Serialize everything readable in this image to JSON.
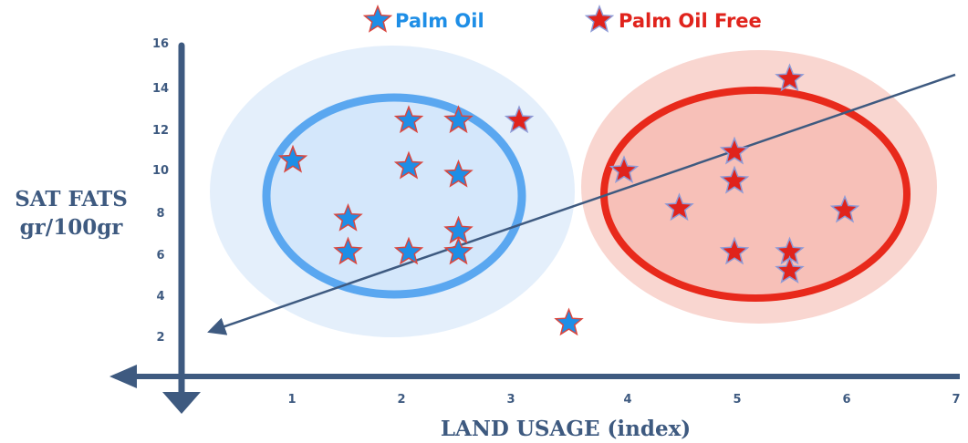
{
  "chart_data": {
    "type": "scatter",
    "xlabel": "LAND USAGE (index)",
    "ylabel": [
      "SAT FATS",
      "gr/100gr"
    ],
    "xlim": [
      0,
      7
    ],
    "ylim": [
      0,
      16
    ],
    "xticks": [
      "1",
      "2",
      "3",
      "4",
      "5",
      "6",
      "7"
    ],
    "yticks": [
      "2",
      "4",
      "6",
      "8",
      "10",
      "12",
      "14",
      "16"
    ],
    "legend_position": "top",
    "series": [
      {
        "name": "Palm Oil",
        "color": "#1e8ee6",
        "points": [
          {
            "x": 1,
            "y": 10.4
          },
          {
            "x": 1.5,
            "y": 7.6
          },
          {
            "x": 1.5,
            "y": 6.0
          },
          {
            "x": 2.05,
            "y": 12.3
          },
          {
            "x": 2.05,
            "y": 10.1
          },
          {
            "x": 2.05,
            "y": 6.0
          },
          {
            "x": 2.5,
            "y": 12.3
          },
          {
            "x": 2.5,
            "y": 9.7
          },
          {
            "x": 2.5,
            "y": 7.0
          },
          {
            "x": 2.5,
            "y": 6.0
          },
          {
            "x": 3.5,
            "y": 2.6
          }
        ]
      },
      {
        "name": "Palm Oil Free",
        "color": "#e0231c",
        "points": [
          {
            "x": 3.05,
            "y": 12.3
          },
          {
            "x": 4,
            "y": 9.9
          },
          {
            "x": 4.5,
            "y": 8.1
          },
          {
            "x": 5,
            "y": 10.8
          },
          {
            "x": 5,
            "y": 9.4
          },
          {
            "x": 5,
            "y": 6.0
          },
          {
            "x": 5.5,
            "y": 14.3
          },
          {
            "x": 5.5,
            "y": 6.0
          },
          {
            "x": 5.5,
            "y": 5.1
          },
          {
            "x": 6,
            "y": 8.0
          }
        ]
      }
    ],
    "trend_line": {
      "x": [
        0.25,
        7
      ],
      "y": [
        2.2,
        14.5
      ]
    },
    "clusters": [
      {
        "name": "palm-oil-cluster",
        "center": [
          2.3,
          9.0
        ],
        "color": "#5aa7f0"
      },
      {
        "name": "palm-oil-free-cluster",
        "center": [
          5.3,
          9.0
        ],
        "color": "#e8291b"
      }
    ]
  }
}
